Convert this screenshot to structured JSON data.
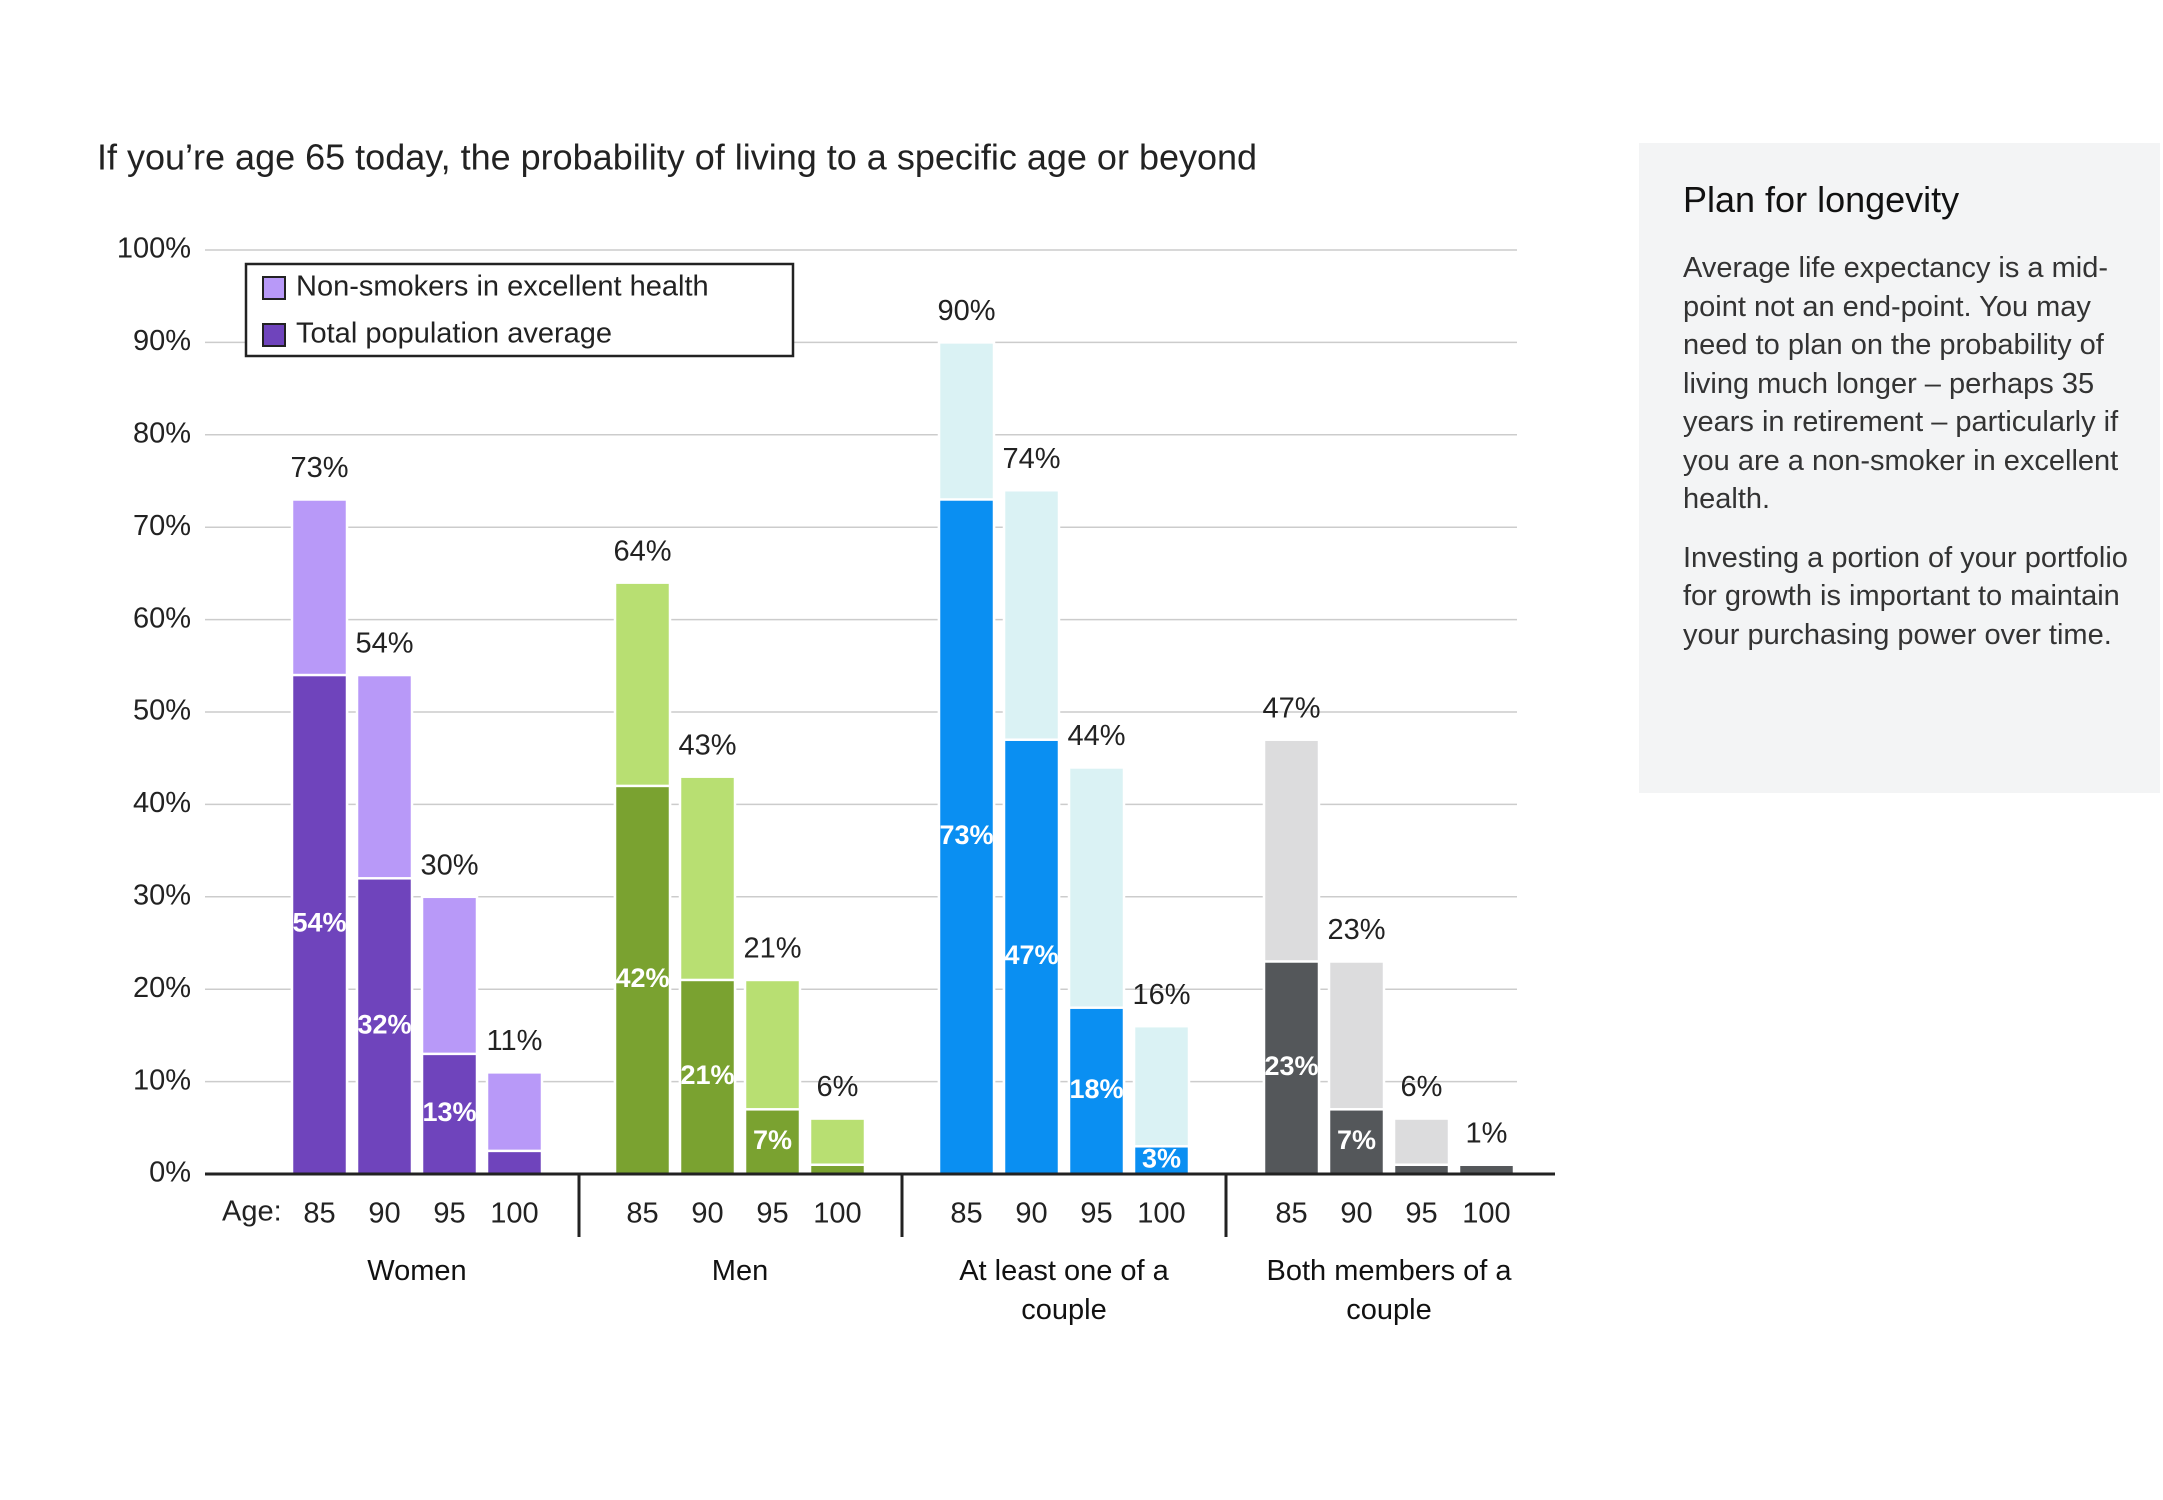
{
  "chart_data": {
    "type": "bar",
    "title": "If you’re age 65 today, the probability of living to a specific age or beyond",
    "x_axis_label": "Age:",
    "groups": [
      "Women",
      "Men",
      "At least one of a couple",
      "Both members of a couple"
    ],
    "categories": [
      "85",
      "90",
      "95",
      "100",
      "85",
      "90",
      "95",
      "100",
      "85",
      "90",
      "95",
      "100",
      "85",
      "90",
      "95",
      "100"
    ],
    "ylim": [
      0,
      100
    ],
    "yticks": [
      {
        "value": 0,
        "label": "0%"
      },
      {
        "value": 10,
        "label": "10%"
      },
      {
        "value": 20,
        "label": "20%"
      },
      {
        "value": 30,
        "label": "30%"
      },
      {
        "value": 40,
        "label": "40%"
      },
      {
        "value": 50,
        "label": "50%"
      },
      {
        "value": 60,
        "label": "60%"
      },
      {
        "value": 70,
        "label": "70%"
      },
      {
        "value": 80,
        "label": "80%"
      },
      {
        "value": 90,
        "label": "90%"
      },
      {
        "value": 100,
        "label": "100%"
      }
    ],
    "grid": true,
    "legend": "top-left",
    "series": [
      {
        "name": "Non-smokers in excellent health",
        "color": "#b899f8",
        "group_colors": [
          "#b899f8",
          "#b8df72",
          "#daf2f4",
          "#dcdcdd"
        ],
        "values": [
          73,
          54,
          30,
          11,
          64,
          43,
          21,
          6,
          90,
          74,
          44,
          16,
          47,
          23,
          6,
          1
        ],
        "value_labels": [
          "73%",
          "54%",
          "30%",
          "11%",
          "64%",
          "43%",
          "21%",
          "6%",
          "90%",
          "74%",
          "44%",
          "16%",
          "47%",
          "23%",
          "6%",
          "1%"
        ]
      },
      {
        "name": "Total population average",
        "color": "#6f44bc",
        "group_colors": [
          "#6f44bc",
          "#7aa230",
          "#0a8ff2",
          "#54575a"
        ],
        "values": [
          54,
          32,
          13,
          2.5,
          42,
          21,
          7,
          1,
          73,
          47,
          18,
          3,
          23,
          7,
          1,
          1
        ],
        "value_labels": [
          "54%",
          "32%",
          "13%",
          null,
          "42%",
          "21%",
          "7%",
          null,
          "73%",
          "47%",
          "18%",
          "3%",
          "23%",
          "7%",
          null,
          null
        ]
      }
    ]
  },
  "sidebar": {
    "title": "Plan for longevity",
    "paragraphs": [
      "Average life expectancy is a mid-point not an end-point. You may need to plan on the probability of living much longer – perhaps 35 years in retirement – particularly if you are a non-smoker in excellent health.",
      "Investing a portion of your portfolio for growth is important to maintain your purchasing power over time."
    ]
  }
}
